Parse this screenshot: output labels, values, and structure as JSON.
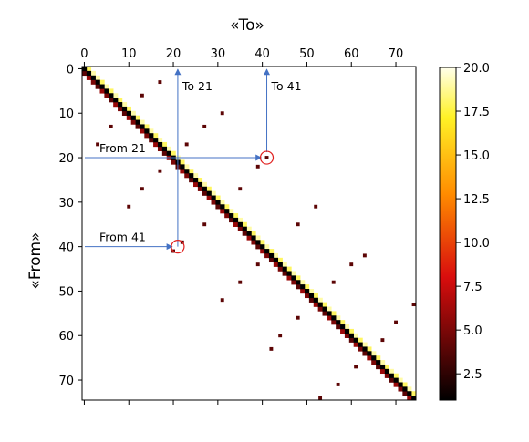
{
  "chart_data": {
    "type": "heatmap",
    "colormap": "afmhot-like (black → red → orange → yellow → white)",
    "xlabel": "«To»",
    "ylabel": "«From»",
    "x_axis_position": "top",
    "xlim": [
      0,
      74
    ],
    "ylim": [
      0,
      74
    ],
    "x_ticks": [
      "0",
      "10",
      "20",
      "30",
      "40",
      "50",
      "60",
      "70"
    ],
    "y_ticks": [
      "0",
      "10",
      "20",
      "30",
      "40",
      "50",
      "60",
      "70"
    ],
    "colorbar": {
      "min": 1,
      "max": 20,
      "ticks": [
        "20.0",
        "17.5",
        "15.0",
        "12.5",
        "10.0",
        "7.5",
        "5.0",
        "2.5"
      ]
    },
    "diagonal": {
      "description": "cells (i,i) dark, cells (i,i+1) bright",
      "main_value": 1,
      "super_values": [
        18,
        19,
        19,
        18,
        19,
        18,
        19,
        18,
        19,
        18,
        19,
        18,
        19,
        18,
        19,
        18,
        19,
        18,
        19,
        18,
        19,
        18,
        19,
        18,
        19,
        18,
        19,
        18,
        19,
        18,
        19,
        18,
        19,
        18,
        19,
        18,
        19,
        18,
        19,
        18,
        19,
        18,
        19,
        18,
        19,
        18,
        19,
        18,
        19,
        18,
        19,
        18,
        19,
        18,
        19,
        18,
        19,
        18,
        19,
        18,
        19,
        18,
        19,
        18,
        19,
        18,
        19,
        18,
        19,
        18,
        19,
        18,
        19,
        18
      ],
      "sub_values": [
        4,
        6,
        5,
        4,
        6,
        5,
        4,
        6,
        5,
        4,
        6,
        5,
        4,
        6,
        5,
        4,
        6,
        5,
        4,
        6,
        5,
        4,
        6,
        5,
        4,
        6,
        5,
        4,
        6,
        5,
        4,
        6,
        5,
        4,
        6,
        5,
        4,
        6,
        5,
        4,
        6,
        5,
        4,
        6,
        5,
        4,
        6,
        5,
        4,
        6,
        5,
        4,
        6,
        5,
        4,
        6,
        5,
        4,
        6,
        5,
        4,
        6,
        5,
        4,
        6,
        5,
        4,
        6,
        5,
        4,
        6,
        5,
        4,
        6
      ]
    },
    "off_diagonal_cells": [
      {
        "row": 3,
        "col": 17,
        "value": 4
      },
      {
        "row": 6,
        "col": 13,
        "value": 4
      },
      {
        "row": 10,
        "col": 31,
        "value": 4
      },
      {
        "row": 13,
        "col": 6,
        "value": 4
      },
      {
        "row": 13,
        "col": 27,
        "value": 4
      },
      {
        "row": 17,
        "col": 3,
        "value": 4
      },
      {
        "row": 17,
        "col": 23,
        "value": 4
      },
      {
        "row": 20,
        "col": 41,
        "value": 4
      },
      {
        "row": 22,
        "col": 39,
        "value": 4
      },
      {
        "row": 23,
        "col": 17,
        "value": 4
      },
      {
        "row": 27,
        "col": 13,
        "value": 4
      },
      {
        "row": 27,
        "col": 35,
        "value": 4
      },
      {
        "row": 31,
        "col": 10,
        "value": 4
      },
      {
        "row": 31,
        "col": 52,
        "value": 4
      },
      {
        "row": 35,
        "col": 27,
        "value": 4
      },
      {
        "row": 35,
        "col": 48,
        "value": 4
      },
      {
        "row": 39,
        "col": 22,
        "value": 4
      },
      {
        "row": 41,
        "col": 20,
        "value": 4
      },
      {
        "row": 42,
        "col": 63,
        "value": 4
      },
      {
        "row": 44,
        "col": 39,
        "value": 4
      },
      {
        "row": 44,
        "col": 60,
        "value": 4
      },
      {
        "row": 48,
        "col": 35,
        "value": 4
      },
      {
        "row": 48,
        "col": 56,
        "value": 4
      },
      {
        "row": 52,
        "col": 31,
        "value": 4
      },
      {
        "row": 53,
        "col": 74,
        "value": 4
      },
      {
        "row": 56,
        "col": 48,
        "value": 4
      },
      {
        "row": 57,
        "col": 70,
        "value": 4
      },
      {
        "row": 60,
        "col": 44,
        "value": 4
      },
      {
        "row": 61,
        "col": 67,
        "value": 4
      },
      {
        "row": 63,
        "col": 42,
        "value": 4
      },
      {
        "row": 67,
        "col": 61,
        "value": 4
      },
      {
        "row": 71,
        "col": 57,
        "value": 4
      },
      {
        "row": 74,
        "col": 53,
        "value": 4
      }
    ],
    "annotations": {
      "from_21": "From 21",
      "from_41": "From 41",
      "to_21": "To 21",
      "to_41": "To 41"
    },
    "annotation_geometry": {
      "from_21": {
        "row": 20.5,
        "col_end": 41
      },
      "from_41": {
        "row": 40.5,
        "col_end": 21
      },
      "to_21": {
        "col": 21,
        "row_end": 20.5
      },
      "to_41": {
        "col": 41,
        "row_end": 20.5
      },
      "circles": [
        {
          "row": 20.5,
          "col": 41
        },
        {
          "row": 40.5,
          "col": 21
        }
      ]
    },
    "colors": {
      "arrow": "#4472c4",
      "circle": "#e0201f"
    }
  }
}
